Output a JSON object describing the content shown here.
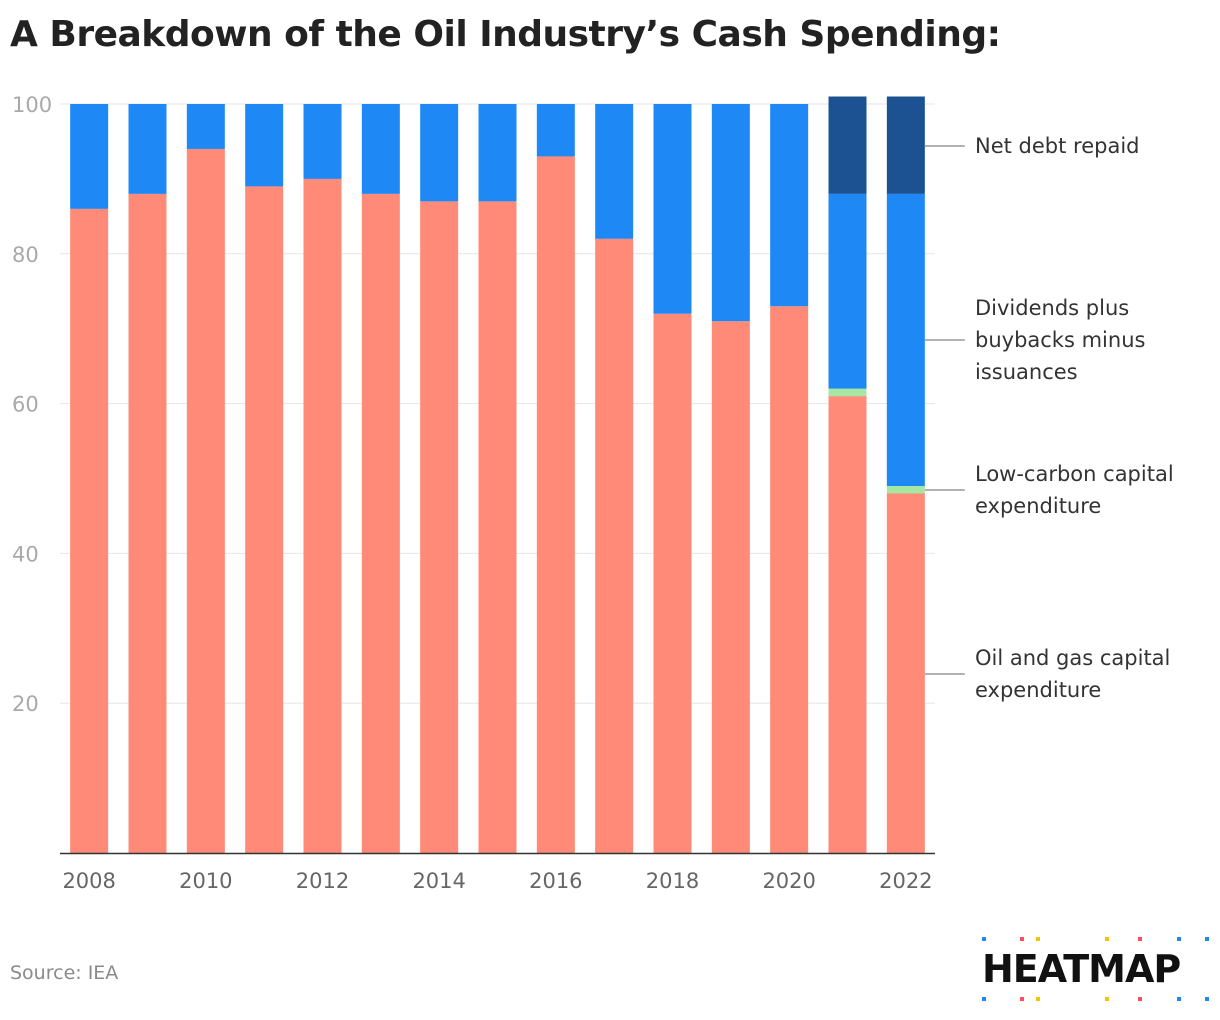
{
  "title": "A Breakdown of the Oil Industry’s Cash Spending:",
  "source": "Source: IEA",
  "logo_text": "HEATMAP",
  "chart_data": {
    "type": "bar",
    "stacked": true,
    "categories": [
      "2008",
      "2009",
      "2010",
      "2011",
      "2012",
      "2013",
      "2014",
      "2015",
      "2016",
      "2017",
      "2018",
      "2019",
      "2020",
      "2021",
      "2022"
    ],
    "x_tick_labels": [
      "2008",
      "2010",
      "2012",
      "2014",
      "2016",
      "2018",
      "2020",
      "2022"
    ],
    "y_tick_labels": [
      "20",
      "40",
      "60",
      "80",
      "100"
    ],
    "ylim": [
      0,
      100
    ],
    "grid": true,
    "legend_placement": "right",
    "series": [
      {
        "name": "Oil and gas capital expenditure",
        "label_lines": [
          "Oil and gas capital",
          "expenditure"
        ],
        "color": "#ff8a77",
        "values": [
          86,
          88,
          94,
          89,
          90,
          88,
          87,
          87,
          93,
          82,
          72,
          71,
          73,
          61,
          48
        ]
      },
      {
        "name": "Low-carbon capital expenditure",
        "label_lines": [
          "Low-carbon capital",
          "expenditure"
        ],
        "color": "#a8e6a3",
        "values": [
          0,
          0,
          0,
          0,
          0,
          0,
          0,
          0,
          0,
          0,
          0,
          0,
          0,
          1,
          1
        ]
      },
      {
        "name": "Dividends plus buybacks minus issuances",
        "label_lines": [
          "Dividends plus",
          "buybacks minus",
          "issuances"
        ],
        "color": "#1e88f5",
        "values": [
          14,
          12,
          6,
          11,
          10,
          12,
          13,
          13,
          7,
          18,
          28,
          29,
          27,
          26,
          39
        ]
      },
      {
        "name": "Net debt repaid",
        "label_lines": [
          "Net debt repaid"
        ],
        "color": "#1c5292",
        "values": [
          0,
          0,
          0,
          0,
          0,
          0,
          0,
          0,
          0,
          0,
          0,
          0,
          0,
          13,
          13
        ]
      }
    ]
  }
}
